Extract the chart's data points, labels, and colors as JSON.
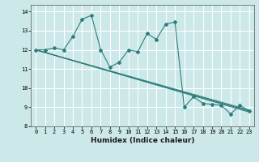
{
  "xlabel": "Humidex (Indice chaleur)",
  "ylabel": "",
  "xlim": [
    -0.5,
    23.5
  ],
  "ylim": [
    8.0,
    14.35
  ],
  "yticks": [
    8,
    9,
    10,
    11,
    12,
    13,
    14
  ],
  "xticks": [
    0,
    1,
    2,
    3,
    4,
    5,
    6,
    7,
    8,
    9,
    10,
    11,
    12,
    13,
    14,
    15,
    16,
    17,
    18,
    19,
    20,
    21,
    22,
    23
  ],
  "background_color": "#cce8e8",
  "grid_color": "#ffffff",
  "line_color": "#2d7d7d",
  "lines": [
    {
      "x": [
        0,
        1,
        2,
        3,
        4,
        5,
        6,
        7,
        8,
        9,
        10,
        11,
        12,
        13,
        14,
        15,
        16,
        17,
        18,
        19,
        20,
        21,
        22,
        23
      ],
      "y": [
        12.0,
        12.0,
        12.1,
        12.0,
        12.7,
        13.6,
        13.8,
        12.0,
        11.1,
        11.35,
        12.0,
        11.9,
        12.85,
        12.55,
        13.35,
        13.45,
        9.0,
        9.55,
        9.2,
        9.15,
        9.1,
        8.65,
        9.1,
        8.8
      ],
      "has_markers": true
    },
    {
      "x": [
        0,
        23
      ],
      "y": [
        12.0,
        8.75
      ],
      "has_markers": false
    },
    {
      "x": [
        0,
        23
      ],
      "y": [
        12.0,
        8.8
      ],
      "has_markers": false
    },
    {
      "x": [
        0,
        23
      ],
      "y": [
        12.0,
        8.85
      ],
      "has_markers": false
    }
  ]
}
